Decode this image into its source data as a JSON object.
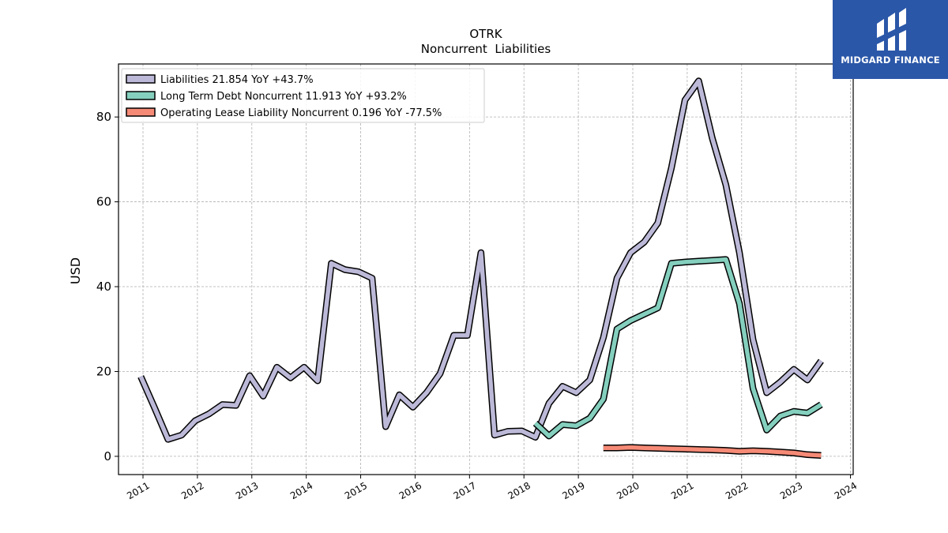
{
  "chart_data": {
    "type": "line",
    "title": "OTRK",
    "subtitle": "Noncurrent  Liabilities",
    "ylabel": "USD",
    "xlabel": "",
    "xlim": [
      2010.55,
      2024.05
    ],
    "ylim": [
      -4.3,
      92.5
    ],
    "x_ticks": [
      2011,
      2012,
      2013,
      2014,
      2015,
      2016,
      2017,
      2018,
      2019,
      2020,
      2021,
      2022,
      2023,
      2024
    ],
    "y_ticks": [
      0,
      20,
      40,
      60,
      80
    ],
    "grid": true,
    "legend_position": "top-left",
    "series": [
      {
        "name": "Liabilities",
        "legend_label": "Liabilities  21.854 YoY +43.7%",
        "color": "#bcb9d8",
        "x": [
          2010.96,
          2011.21,
          2011.46,
          2011.71,
          2011.96,
          2012.21,
          2012.46,
          2012.71,
          2012.96,
          2013.21,
          2013.46,
          2013.71,
          2013.96,
          2014.21,
          2014.46,
          2014.71,
          2014.96,
          2015.21,
          2015.46,
          2015.71,
          2015.96,
          2016.21,
          2016.46,
          2016.71,
          2016.96,
          2017.21,
          2017.46,
          2017.71,
          2017.96,
          2018.21,
          2018.46,
          2018.71,
          2018.96,
          2019.21,
          2019.46,
          2019.71,
          2019.96,
          2020.21,
          2020.46,
          2020.71,
          2020.96,
          2021.21,
          2021.46,
          2021.71,
          2021.96,
          2022.21,
          2022.46,
          2022.71,
          2022.96,
          2023.21,
          2023.46
        ],
        "y": [
          18.8,
          11.5,
          4.0,
          5.0,
          8.4,
          10.0,
          12.2,
          12.0,
          19.0,
          14.2,
          21.0,
          18.5,
          21.0,
          17.8,
          45.5,
          44.0,
          43.5,
          42.0,
          7.0,
          14.5,
          11.6,
          15.0,
          19.5,
          28.5,
          28.5,
          48.0,
          5.0,
          5.9,
          6.0,
          4.5,
          12.5,
          16.5,
          15.0,
          18.0,
          28.0,
          42.0,
          48.0,
          50.5,
          55.0,
          68.0,
          84.0,
          88.5,
          75.0,
          64.0,
          48.0,
          27.5,
          15.0,
          17.5,
          20.5,
          18.0,
          22.5
        ]
      },
      {
        "name": "Long Term Debt Noncurrent",
        "legend_label": "Long Term Debt Noncurrent  11.913 YoY +93.2%",
        "color": "#84cfbe",
        "x": [
          2018.21,
          2018.46,
          2018.71,
          2018.96,
          2019.21,
          2019.46,
          2019.71,
          2019.96,
          2020.21,
          2020.46,
          2020.71,
          2020.96,
          2021.21,
          2021.46,
          2021.71,
          2021.96,
          2022.21,
          2022.46,
          2022.71,
          2022.96,
          2023.21,
          2023.46
        ],
        "y": [
          7.8,
          4.8,
          7.5,
          7.2,
          9.0,
          13.5,
          30.0,
          32.0,
          33.5,
          35.0,
          45.5,
          45.8,
          46.0,
          46.2,
          46.4,
          36.0,
          16.0,
          6.2,
          9.5,
          10.6,
          10.2,
          12.2
        ]
      },
      {
        "name": "Operating Lease Liability Noncurrent",
        "legend_label": "Operating Lease Liability Noncurrent  0.196 YoY -77.5%",
        "color": "#f58a76",
        "x": [
          2019.46,
          2019.71,
          2019.96,
          2020.21,
          2020.46,
          2020.71,
          2020.96,
          2021.21,
          2021.46,
          2021.71,
          2021.96,
          2022.21,
          2022.46,
          2022.71,
          2022.96,
          2023.21,
          2023.46
        ],
        "y": [
          2.0,
          2.0,
          2.1,
          2.0,
          1.9,
          1.8,
          1.7,
          1.6,
          1.5,
          1.4,
          1.2,
          1.3,
          1.2,
          1.0,
          0.8,
          0.4,
          0.2
        ]
      }
    ]
  },
  "logo": {
    "text": "MIDGARD FINANCE"
  }
}
